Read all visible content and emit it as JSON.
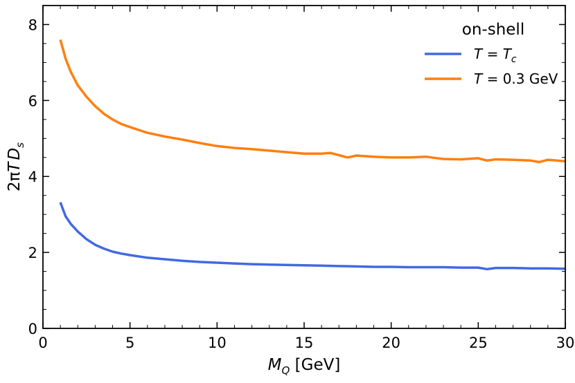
{
  "chart_data": {
    "type": "line",
    "title": "",
    "xlabel": {
      "main": "M",
      "sub": "Q",
      "unit": " [GeV]"
    },
    "ylabel": {
      "prefix": "2π",
      "var1": "T",
      "var2": "D",
      "sub": "s"
    },
    "xlim": [
      0,
      30
    ],
    "ylim": [
      0,
      8.5
    ],
    "xticks": [
      0,
      5,
      10,
      15,
      20,
      25,
      30
    ],
    "yticks": [
      0,
      2,
      4,
      6,
      8
    ],
    "grid": false,
    "legend": {
      "placement": "top-right",
      "title": "on-shell"
    },
    "series": [
      {
        "name": "T = T_c",
        "legend_label": {
          "var": "T",
          "eq": " = ",
          "rhs": "T",
          "rhs_sub": "c"
        },
        "color": "#4169E1",
        "x": [
          1.0,
          1.3,
          1.6,
          2.0,
          2.5,
          3.0,
          3.5,
          4.0,
          4.5,
          5.0,
          6.0,
          7.0,
          8.0,
          9.0,
          10.0,
          11.0,
          12.0,
          13.0,
          14.0,
          15.0,
          16.0,
          17.0,
          18.0,
          19.0,
          20.0,
          21.0,
          22.0,
          23.0,
          24.0,
          25.0,
          25.5,
          26.0,
          27.0,
          28.0,
          29.0,
          30.0
        ],
        "y": [
          3.32,
          2.95,
          2.75,
          2.55,
          2.35,
          2.2,
          2.1,
          2.02,
          1.97,
          1.93,
          1.86,
          1.82,
          1.78,
          1.75,
          1.73,
          1.71,
          1.69,
          1.68,
          1.67,
          1.66,
          1.65,
          1.64,
          1.63,
          1.62,
          1.62,
          1.61,
          1.61,
          1.61,
          1.6,
          1.6,
          1.56,
          1.59,
          1.59,
          1.58,
          1.58,
          1.57
        ]
      },
      {
        "name": "T = 0.3 GeV",
        "legend_label": {
          "var": "T",
          "eq": " = 0.3 GeV",
          "rhs": "",
          "rhs_sub": ""
        },
        "color": "#FF7F0E",
        "x": [
          1.0,
          1.3,
          1.6,
          2.0,
          2.5,
          3.0,
          3.5,
          4.0,
          4.5,
          5.0,
          6.0,
          7.0,
          8.0,
          9.0,
          10.0,
          11.0,
          12.0,
          13.0,
          14.0,
          15.0,
          16.0,
          16.5,
          17.0,
          17.5,
          18.0,
          19.0,
          20.0,
          21.0,
          22.0,
          23.0,
          24.0,
          25.0,
          25.5,
          26.0,
          27.0,
          28.0,
          28.5,
          29.0,
          30.0
        ],
        "y": [
          7.6,
          7.1,
          6.75,
          6.4,
          6.1,
          5.85,
          5.65,
          5.5,
          5.38,
          5.3,
          5.15,
          5.05,
          4.97,
          4.88,
          4.8,
          4.75,
          4.72,
          4.68,
          4.64,
          4.6,
          4.6,
          4.62,
          4.56,
          4.5,
          4.55,
          4.52,
          4.5,
          4.5,
          4.52,
          4.46,
          4.45,
          4.48,
          4.42,
          4.45,
          4.44,
          4.42,
          4.38,
          4.44,
          4.4
        ]
      }
    ]
  }
}
